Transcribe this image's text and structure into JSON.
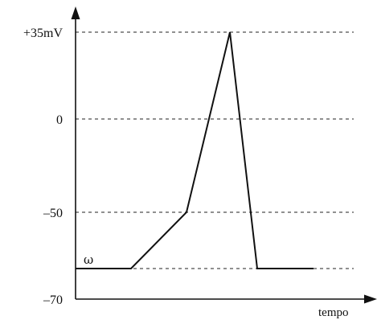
{
  "chart_data": {
    "type": "line",
    "title": "",
    "xlabel": "tempo",
    "ylabel": "",
    "ylim": [
      -70,
      35
    ],
    "xlim": [
      0,
      10
    ],
    "yticks": [
      {
        "value": 35,
        "label": "+35mV"
      },
      {
        "value": 0,
        "label": "0"
      },
      {
        "value": -50,
        "label": "–50"
      },
      {
        "value": -70,
        "label": "–70"
      }
    ],
    "gridlines": [
      35,
      0,
      -50,
      -65
    ],
    "grid": true,
    "series": [
      {
        "x": [
          0,
          2,
          4,
          5.6,
          6.6,
          8.6
        ],
        "y": [
          -65,
          -65,
          -50,
          35,
          -65,
          -65
        ]
      }
    ],
    "annotations": [
      {
        "text": "ω",
        "x": 0.4,
        "y": -62
      }
    ]
  }
}
